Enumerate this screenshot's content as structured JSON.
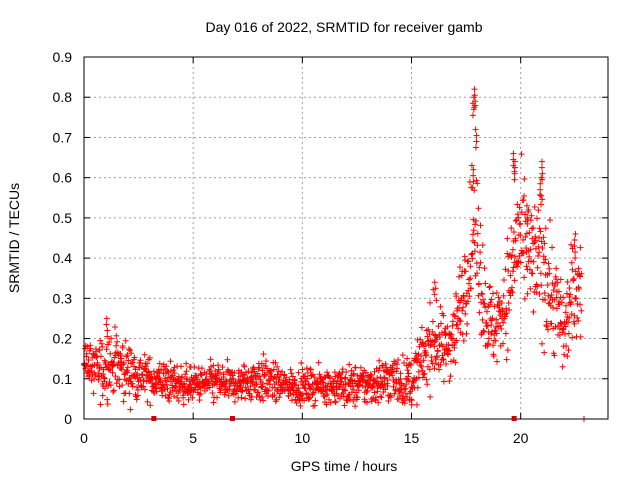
{
  "chart_data": {
    "type": "scatter",
    "title": "Day 016 of 2022, SRMTID for receiver gamb",
    "xlabel": "GPS time / hours",
    "ylabel": "SRMTID / TECUs",
    "xlim": [
      0,
      24
    ],
    "ylim": [
      0,
      0.9
    ],
    "xticks": [
      "0",
      "5",
      "10",
      "15",
      "20"
    ],
    "xtick_values": [
      0,
      5,
      10,
      15,
      20
    ],
    "yticks": [
      "0",
      "0.1",
      "0.2",
      "0.3",
      "0.4",
      "0.5",
      "0.6",
      "0.7",
      "0.8",
      "0.9"
    ],
    "ytick_values": [
      0,
      0.1,
      0.2,
      0.3,
      0.4,
      0.5,
      0.6,
      0.7,
      0.8,
      0.9
    ],
    "grid": true,
    "series_color": "#ff0000",
    "marker": "plus",
    "trend": [
      {
        "x": 0.0,
        "y": 0.15,
        "s": 0.035
      },
      {
        "x": 0.5,
        "y": 0.12,
        "s": 0.03
      },
      {
        "x": 1.0,
        "y": 0.13,
        "s": 0.04
      },
      {
        "x": 1.5,
        "y": 0.14,
        "s": 0.04
      },
      {
        "x": 2.0,
        "y": 0.12,
        "s": 0.035
      },
      {
        "x": 3.0,
        "y": 0.1,
        "s": 0.025
      },
      {
        "x": 4.0,
        "y": 0.09,
        "s": 0.025
      },
      {
        "x": 5.0,
        "y": 0.085,
        "s": 0.02
      },
      {
        "x": 6.0,
        "y": 0.09,
        "s": 0.025
      },
      {
        "x": 7.0,
        "y": 0.085,
        "s": 0.02
      },
      {
        "x": 8.0,
        "y": 0.1,
        "s": 0.03
      },
      {
        "x": 9.0,
        "y": 0.085,
        "s": 0.02
      },
      {
        "x": 10.0,
        "y": 0.08,
        "s": 0.02
      },
      {
        "x": 11.0,
        "y": 0.085,
        "s": 0.02
      },
      {
        "x": 12.0,
        "y": 0.08,
        "s": 0.025
      },
      {
        "x": 13.0,
        "y": 0.085,
        "s": 0.025
      },
      {
        "x": 14.0,
        "y": 0.1,
        "s": 0.03
      },
      {
        "x": 15.0,
        "y": 0.09,
        "s": 0.03
      },
      {
        "x": 15.5,
        "y": 0.15,
        "s": 0.04
      },
      {
        "x": 16.0,
        "y": 0.2,
        "s": 0.05
      },
      {
        "x": 16.5,
        "y": 0.17,
        "s": 0.04
      },
      {
        "x": 17.0,
        "y": 0.22,
        "s": 0.05
      },
      {
        "x": 17.5,
        "y": 0.35,
        "s": 0.06
      },
      {
        "x": 17.9,
        "y": 0.5,
        "s": 0.1
      },
      {
        "x": 18.3,
        "y": 0.3,
        "s": 0.06
      },
      {
        "x": 18.7,
        "y": 0.22,
        "s": 0.05
      },
      {
        "x": 19.0,
        "y": 0.25,
        "s": 0.05
      },
      {
        "x": 19.5,
        "y": 0.33,
        "s": 0.07
      },
      {
        "x": 19.8,
        "y": 0.45,
        "s": 0.08
      },
      {
        "x": 20.2,
        "y": 0.42,
        "s": 0.07
      },
      {
        "x": 20.6,
        "y": 0.38,
        "s": 0.08
      },
      {
        "x": 21.0,
        "y": 0.4,
        "s": 0.09
      },
      {
        "x": 21.5,
        "y": 0.3,
        "s": 0.07
      },
      {
        "x": 22.0,
        "y": 0.22,
        "s": 0.05
      },
      {
        "x": 22.5,
        "y": 0.33,
        "s": 0.07
      },
      {
        "x": 22.8,
        "y": 0.32,
        "s": 0.06
      }
    ],
    "peaks": [
      {
        "x": 17.9,
        "y": 0.82
      },
      {
        "x": 17.85,
        "y": 0.8
      },
      {
        "x": 17.95,
        "y": 0.72
      },
      {
        "x": 17.8,
        "y": 0.62
      },
      {
        "x": 19.7,
        "y": 0.66
      },
      {
        "x": 19.75,
        "y": 0.64
      },
      {
        "x": 21.0,
        "y": 0.64
      },
      {
        "x": 20.9,
        "y": 0.6
      },
      {
        "x": 20.3,
        "y": 0.53
      },
      {
        "x": 22.5,
        "y": 0.46
      },
      {
        "x": 16.1,
        "y": 0.34
      },
      {
        "x": 1.05,
        "y": 0.25
      }
    ],
    "axis_markers": [
      3.2,
      6.8,
      19.7
    ],
    "stray_points": [
      {
        "x": 22.9,
        "y": 0.0
      }
    ]
  }
}
